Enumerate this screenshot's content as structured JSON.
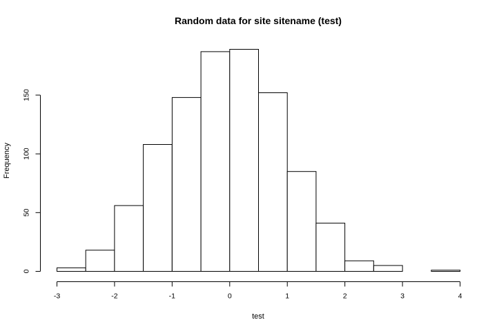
{
  "chart_data": {
    "type": "bar",
    "title": "Random data for site sitename (test)",
    "xlabel": "test",
    "ylabel": "Frequency",
    "bin_edges": [
      -3,
      -2.5,
      -2,
      -1.5,
      -1,
      -0.5,
      0,
      0.5,
      1,
      1.5,
      2,
      2.5,
      3,
      3.5,
      4
    ],
    "values": [
      3,
      18,
      56,
      108,
      148,
      187,
      189,
      152,
      85,
      41,
      9,
      5,
      0,
      1
    ],
    "xlim": [
      -3,
      4
    ],
    "ylim": [
      0,
      189
    ],
    "x_ticks": [
      -3,
      -2,
      -1,
      0,
      1,
      2,
      3,
      4
    ],
    "y_ticks": [
      0,
      50,
      100,
      150
    ],
    "grid": false,
    "legend": "none"
  }
}
